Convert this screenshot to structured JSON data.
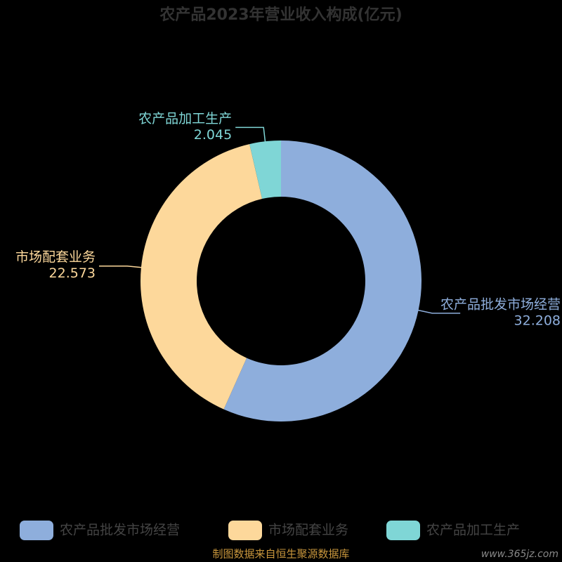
{
  "chart_data": {
    "type": "pie",
    "title": "农产品2023年营业收入构成(亿元)",
    "categories": [
      "农产品批发市场经营",
      "市场配套业务",
      "农产品加工生产"
    ],
    "values": [
      32.208,
      22.573,
      2.045
    ],
    "colors": [
      "#8eaedc",
      "#fdd89b",
      "#7fd6d6"
    ],
    "legend": "bottom",
    "footer": "制图数据来自恒生聚源数据库",
    "watermark": "www.365jz.com"
  }
}
